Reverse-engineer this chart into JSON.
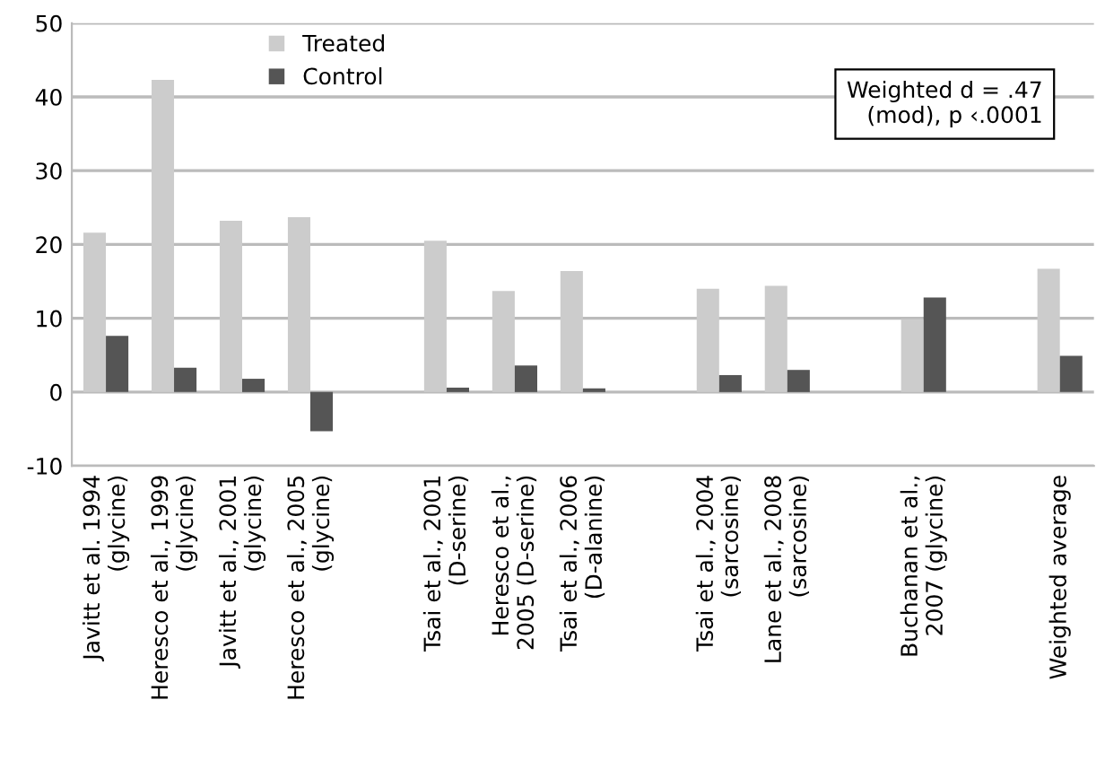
{
  "chart_data": {
    "type": "bar",
    "categories": [
      "Javitt et al. 1994\n(glycine)",
      "Heresco et al., 1999\n(glycine)",
      "Javitt et al., 2001\n(glycine)",
      "Heresco et al., 2005\n(glycine)",
      null,
      "Tsai et al., 2001\n(D-serine)",
      "Heresco et al.,\n2005 (D-serine)",
      "Tsai et al., 2006\n(D-alanine)",
      null,
      "Tsai et al., 2004\n(sarcosine)",
      "Lane et al., 2008\n(sarcosine)",
      null,
      "Buchanan et al.,\n2007 (glycine)",
      null,
      "Weighted average"
    ],
    "series": [
      {
        "name": "Treated",
        "color": "#cccccc",
        "values": [
          21.6,
          42.3,
          23.2,
          23.7,
          null,
          20.5,
          13.7,
          16.4,
          null,
          14.0,
          14.4,
          null,
          9.9,
          null,
          16.7
        ]
      },
      {
        "name": "Control",
        "color": "#555555",
        "values": [
          7.6,
          3.3,
          1.8,
          -5.3,
          null,
          0.6,
          3.6,
          0.5,
          null,
          2.3,
          3.0,
          null,
          12.8,
          null,
          4.9
        ]
      }
    ],
    "ylim": [
      -10,
      50
    ],
    "yticks": [
      -10,
      0,
      10,
      20,
      30,
      40,
      50
    ],
    "grid": "y",
    "legend": "top",
    "annotations": [
      "Weighted d = .47\n(mod), p ‹.0001"
    ]
  }
}
